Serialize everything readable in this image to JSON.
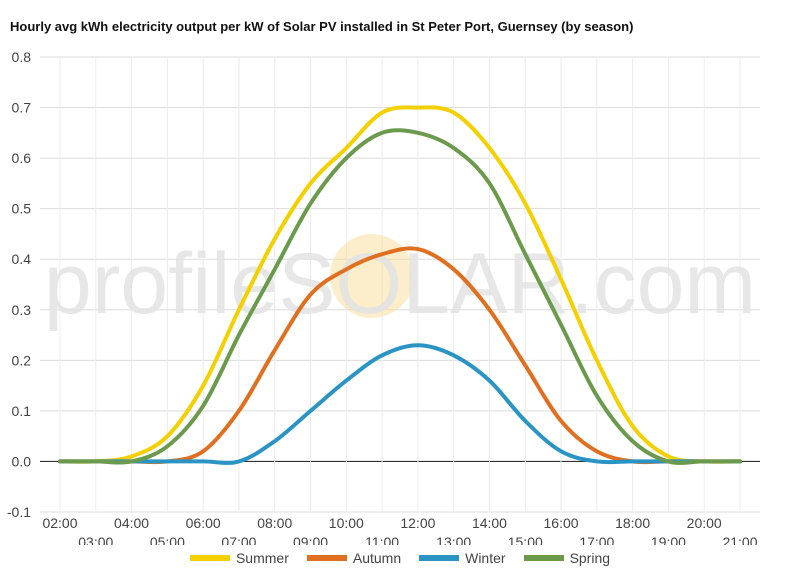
{
  "chart_data": {
    "type": "line",
    "title": "Hourly avg kWh electricity output per kW of Solar PV installed in St Peter Port, Guernsey (by season)",
    "xlabel": "",
    "ylabel": "",
    "x": [
      "02:00",
      "03:00",
      "04:00",
      "05:00",
      "06:00",
      "07:00",
      "08:00",
      "09:00",
      "10:00",
      "11:00",
      "12:00",
      "13:00",
      "14:00",
      "15:00",
      "16:00",
      "17:00",
      "18:00",
      "19:00",
      "20:00",
      "21:00"
    ],
    "ylim": [
      -0.1,
      0.8
    ],
    "yticks": [
      "-0.1",
      "0.0",
      "0.1",
      "0.2",
      "0.3",
      "0.4",
      "0.5",
      "0.6",
      "0.7",
      "0.8"
    ],
    "grid": true,
    "legend_position": "bottom",
    "watermark": "profileSOLAR.com",
    "series": [
      {
        "name": "Summer",
        "color": "#f5d000",
        "values": [
          0,
          0,
          0.01,
          0.05,
          0.15,
          0.3,
          0.44,
          0.55,
          0.62,
          0.69,
          0.7,
          0.69,
          0.62,
          0.51,
          0.36,
          0.2,
          0.07,
          0.01,
          0,
          0
        ]
      },
      {
        "name": "Autumn",
        "color": "#e07020",
        "values": [
          0,
          0,
          0,
          0,
          0.02,
          0.1,
          0.22,
          0.33,
          0.38,
          0.41,
          0.42,
          0.38,
          0.3,
          0.19,
          0.08,
          0.02,
          0,
          0,
          0,
          0
        ]
      },
      {
        "name": "Winter",
        "color": "#2a94c4",
        "values": [
          0,
          0,
          0,
          0,
          0,
          0,
          0.04,
          0.1,
          0.16,
          0.21,
          0.23,
          0.21,
          0.16,
          0.08,
          0.02,
          0,
          0,
          0,
          0,
          0
        ]
      },
      {
        "name": "Spring",
        "color": "#6b9a4c",
        "values": [
          0,
          0,
          0,
          0.03,
          0.11,
          0.25,
          0.38,
          0.51,
          0.6,
          0.65,
          0.65,
          0.62,
          0.55,
          0.41,
          0.27,
          0.13,
          0.04,
          0,
          0,
          0
        ]
      }
    ]
  }
}
